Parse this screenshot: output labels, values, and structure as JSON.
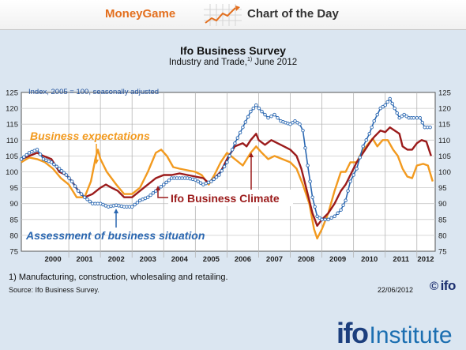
{
  "header": {
    "brand": "MoneyGame",
    "label": "Chart of the Day",
    "icon": "trend-arrow-icon"
  },
  "chart_data": {
    "type": "line",
    "title": "Ifo Business Survey",
    "subtitle_main": "Industry and Trade,",
    "subtitle_sup": "1)",
    "subtitle_tail": " June 2012",
    "index_note": "Index, 2005 = 100, seasonally adjusted",
    "ylim": [
      75,
      125
    ],
    "xlim": [
      1999.5,
      2012.58
    ],
    "yticks": [
      75,
      80,
      85,
      90,
      95,
      100,
      105,
      110,
      115,
      120,
      125
    ],
    "xtick_labels": [
      "2000",
      "2001",
      "2002",
      "2003",
      "2004",
      "2005",
      "2006",
      "2007",
      "2008",
      "2009",
      "2010",
      "2011",
      "2012"
    ],
    "grid": true,
    "series": [
      {
        "name": "Business expectations",
        "color": "#f29a1f",
        "points": [
          [
            1999.5,
            103
          ],
          [
            1999.75,
            104.5
          ],
          [
            2000.0,
            104
          ],
          [
            2000.25,
            103
          ],
          [
            2000.5,
            101
          ],
          [
            2000.75,
            98
          ],
          [
            2001.0,
            96
          ],
          [
            2001.25,
            92
          ],
          [
            2001.5,
            92
          ],
          [
            2001.7,
            97
          ],
          [
            2001.85,
            104.5
          ],
          [
            2001.92,
            107
          ],
          [
            2002.0,
            104
          ],
          [
            2002.2,
            100
          ],
          [
            2002.5,
            96
          ],
          [
            2002.75,
            93
          ],
          [
            2003.0,
            93
          ],
          [
            2003.25,
            95
          ],
          [
            2003.5,
            100
          ],
          [
            2003.75,
            106
          ],
          [
            2003.92,
            107
          ],
          [
            2004.1,
            105
          ],
          [
            2004.3,
            101.5
          ],
          [
            2004.5,
            101
          ],
          [
            2004.75,
            100.5
          ],
          [
            2005.0,
            100
          ],
          [
            2005.2,
            99
          ],
          [
            2005.42,
            96
          ],
          [
            2005.6,
            99
          ],
          [
            2005.8,
            103
          ],
          [
            2006.0,
            106
          ],
          [
            2006.25,
            104
          ],
          [
            2006.5,
            102
          ],
          [
            2006.75,
            106
          ],
          [
            2006.92,
            108
          ],
          [
            2007.1,
            106
          ],
          [
            2007.3,
            104
          ],
          [
            2007.5,
            105
          ],
          [
            2007.75,
            104
          ],
          [
            2008.0,
            103
          ],
          [
            2008.2,
            101
          ],
          [
            2008.4,
            96
          ],
          [
            2008.6,
            90
          ],
          [
            2008.75,
            82
          ],
          [
            2008.85,
            79
          ],
          [
            2009.0,
            82
          ],
          [
            2009.2,
            87
          ],
          [
            2009.4,
            94
          ],
          [
            2009.6,
            100
          ],
          [
            2009.75,
            100
          ],
          [
            2009.9,
            103
          ],
          [
            2010.1,
            103
          ],
          [
            2010.25,
            106
          ],
          [
            2010.4,
            108
          ],
          [
            2010.6,
            110.5
          ],
          [
            2010.75,
            108
          ],
          [
            2010.92,
            110
          ],
          [
            2011.08,
            110
          ],
          [
            2011.25,
            107
          ],
          [
            2011.4,
            105
          ],
          [
            2011.55,
            101
          ],
          [
            2011.7,
            98.5
          ],
          [
            2011.85,
            98
          ],
          [
            2012.0,
            102
          ],
          [
            2012.2,
            102.5
          ],
          [
            2012.35,
            102
          ],
          [
            2012.5,
            97
          ]
        ]
      },
      {
        "name": "Ifo Business Climate",
        "color": "#9b1b1b",
        "points": [
          [
            1999.5,
            104
          ],
          [
            1999.75,
            105
          ],
          [
            2000.0,
            106
          ],
          [
            2000.2,
            105
          ],
          [
            2000.45,
            104
          ],
          [
            2000.7,
            100
          ],
          [
            2000.92,
            99
          ],
          [
            2001.1,
            97
          ],
          [
            2001.3,
            94
          ],
          [
            2001.5,
            92
          ],
          [
            2001.75,
            93
          ],
          [
            2002.0,
            95
          ],
          [
            2002.17,
            96
          ],
          [
            2002.35,
            95
          ],
          [
            2002.55,
            94
          ],
          [
            2002.75,
            92
          ],
          [
            2003.0,
            92
          ],
          [
            2003.25,
            94
          ],
          [
            2003.5,
            96
          ],
          [
            2003.75,
            98
          ],
          [
            2004.0,
            99
          ],
          [
            2004.25,
            99
          ],
          [
            2004.5,
            99.5
          ],
          [
            2004.75,
            99
          ],
          [
            2005.0,
            98.5
          ],
          [
            2005.25,
            98
          ],
          [
            2005.42,
            96.5
          ],
          [
            2005.6,
            98
          ],
          [
            2005.8,
            100
          ],
          [
            2006.0,
            104
          ],
          [
            2006.25,
            108
          ],
          [
            2006.5,
            109
          ],
          [
            2006.62,
            108
          ],
          [
            2006.75,
            110
          ],
          [
            2006.92,
            112
          ],
          [
            2007.0,
            110
          ],
          [
            2007.2,
            108.5
          ],
          [
            2007.4,
            110
          ],
          [
            2007.6,
            109
          ],
          [
            2007.8,
            108
          ],
          [
            2008.0,
            107
          ],
          [
            2008.2,
            105
          ],
          [
            2008.35,
            101
          ],
          [
            2008.5,
            95
          ],
          [
            2008.7,
            87
          ],
          [
            2008.85,
            83
          ],
          [
            2009.0,
            85
          ],
          [
            2009.2,
            87
          ],
          [
            2009.4,
            90
          ],
          [
            2009.6,
            94
          ],
          [
            2009.75,
            96
          ],
          [
            2009.9,
            99
          ],
          [
            2010.1,
            103
          ],
          [
            2010.3,
            106
          ],
          [
            2010.5,
            109
          ],
          [
            2010.65,
            111
          ],
          [
            2010.85,
            113
          ],
          [
            2011.0,
            112.5
          ],
          [
            2011.15,
            114
          ],
          [
            2011.3,
            113
          ],
          [
            2011.45,
            112
          ],
          [
            2011.55,
            108
          ],
          [
            2011.7,
            107
          ],
          [
            2011.85,
            107
          ],
          [
            2012.0,
            109
          ],
          [
            2012.15,
            110
          ],
          [
            2012.3,
            109.5
          ],
          [
            2012.45,
            105
          ]
        ]
      },
      {
        "name": "Assessment of business situation",
        "color": "#2a67b1",
        "markers": true,
        "points": [
          [
            1999.5,
            104
          ],
          [
            1999.75,
            106
          ],
          [
            2000.0,
            107
          ],
          [
            2000.2,
            104
          ],
          [
            2000.45,
            103
          ],
          [
            2000.7,
            101
          ],
          [
            2000.92,
            99
          ],
          [
            2001.1,
            97
          ],
          [
            2001.3,
            94
          ],
          [
            2001.5,
            92
          ],
          [
            2001.75,
            90
          ],
          [
            2002.0,
            90
          ],
          [
            2002.25,
            89
          ],
          [
            2002.5,
            89.5
          ],
          [
            2002.75,
            89
          ],
          [
            2003.0,
            89
          ],
          [
            2003.25,
            91
          ],
          [
            2003.5,
            92
          ],
          [
            2003.75,
            94
          ],
          [
            2004.0,
            96
          ],
          [
            2004.25,
            98
          ],
          [
            2004.5,
            98
          ],
          [
            2004.75,
            98
          ],
          [
            2005.0,
            97.5
          ],
          [
            2005.25,
            96
          ],
          [
            2005.5,
            97
          ],
          [
            2005.75,
            99
          ],
          [
            2006.0,
            103
          ],
          [
            2006.25,
            109
          ],
          [
            2006.5,
            114
          ],
          [
            2006.75,
            119
          ],
          [
            2006.92,
            121
          ],
          [
            2007.1,
            119
          ],
          [
            2007.3,
            117
          ],
          [
            2007.5,
            118
          ],
          [
            2007.7,
            116
          ],
          [
            2007.85,
            115.5
          ],
          [
            2008.0,
            115
          ],
          [
            2008.15,
            116
          ],
          [
            2008.3,
            115
          ],
          [
            2008.4,
            113
          ],
          [
            2008.55,
            102
          ],
          [
            2008.7,
            92
          ],
          [
            2008.85,
            86
          ],
          [
            2009.0,
            85
          ],
          [
            2009.2,
            85
          ],
          [
            2009.4,
            86
          ],
          [
            2009.6,
            88
          ],
          [
            2009.75,
            91
          ],
          [
            2009.9,
            97
          ],
          [
            2010.1,
            101
          ],
          [
            2010.3,
            108
          ],
          [
            2010.5,
            112
          ],
          [
            2010.65,
            116
          ],
          [
            2010.85,
            120
          ],
          [
            2011.0,
            121
          ],
          [
            2011.15,
            123
          ],
          [
            2011.3,
            120
          ],
          [
            2011.45,
            117
          ],
          [
            2011.6,
            118
          ],
          [
            2011.75,
            117
          ],
          [
            2011.9,
            117
          ],
          [
            2012.0,
            117
          ],
          [
            2012.1,
            117
          ],
          [
            2012.25,
            114
          ],
          [
            2012.42,
            114
          ]
        ]
      }
    ],
    "labels": {
      "expectations": "Business expectations",
      "climate": "Ifo Business Climate",
      "situation": "Assessment of business situation"
    }
  },
  "footer": {
    "footnote": "1) Manufacturing, construction, wholesaling and retailing.",
    "source": "Source: Ifo Business Survey.",
    "date": "22/06/2012",
    "copyright": "©",
    "ifo_mark": "ifo",
    "logo_ifo": "ifo",
    "logo_institute": "Institute"
  }
}
